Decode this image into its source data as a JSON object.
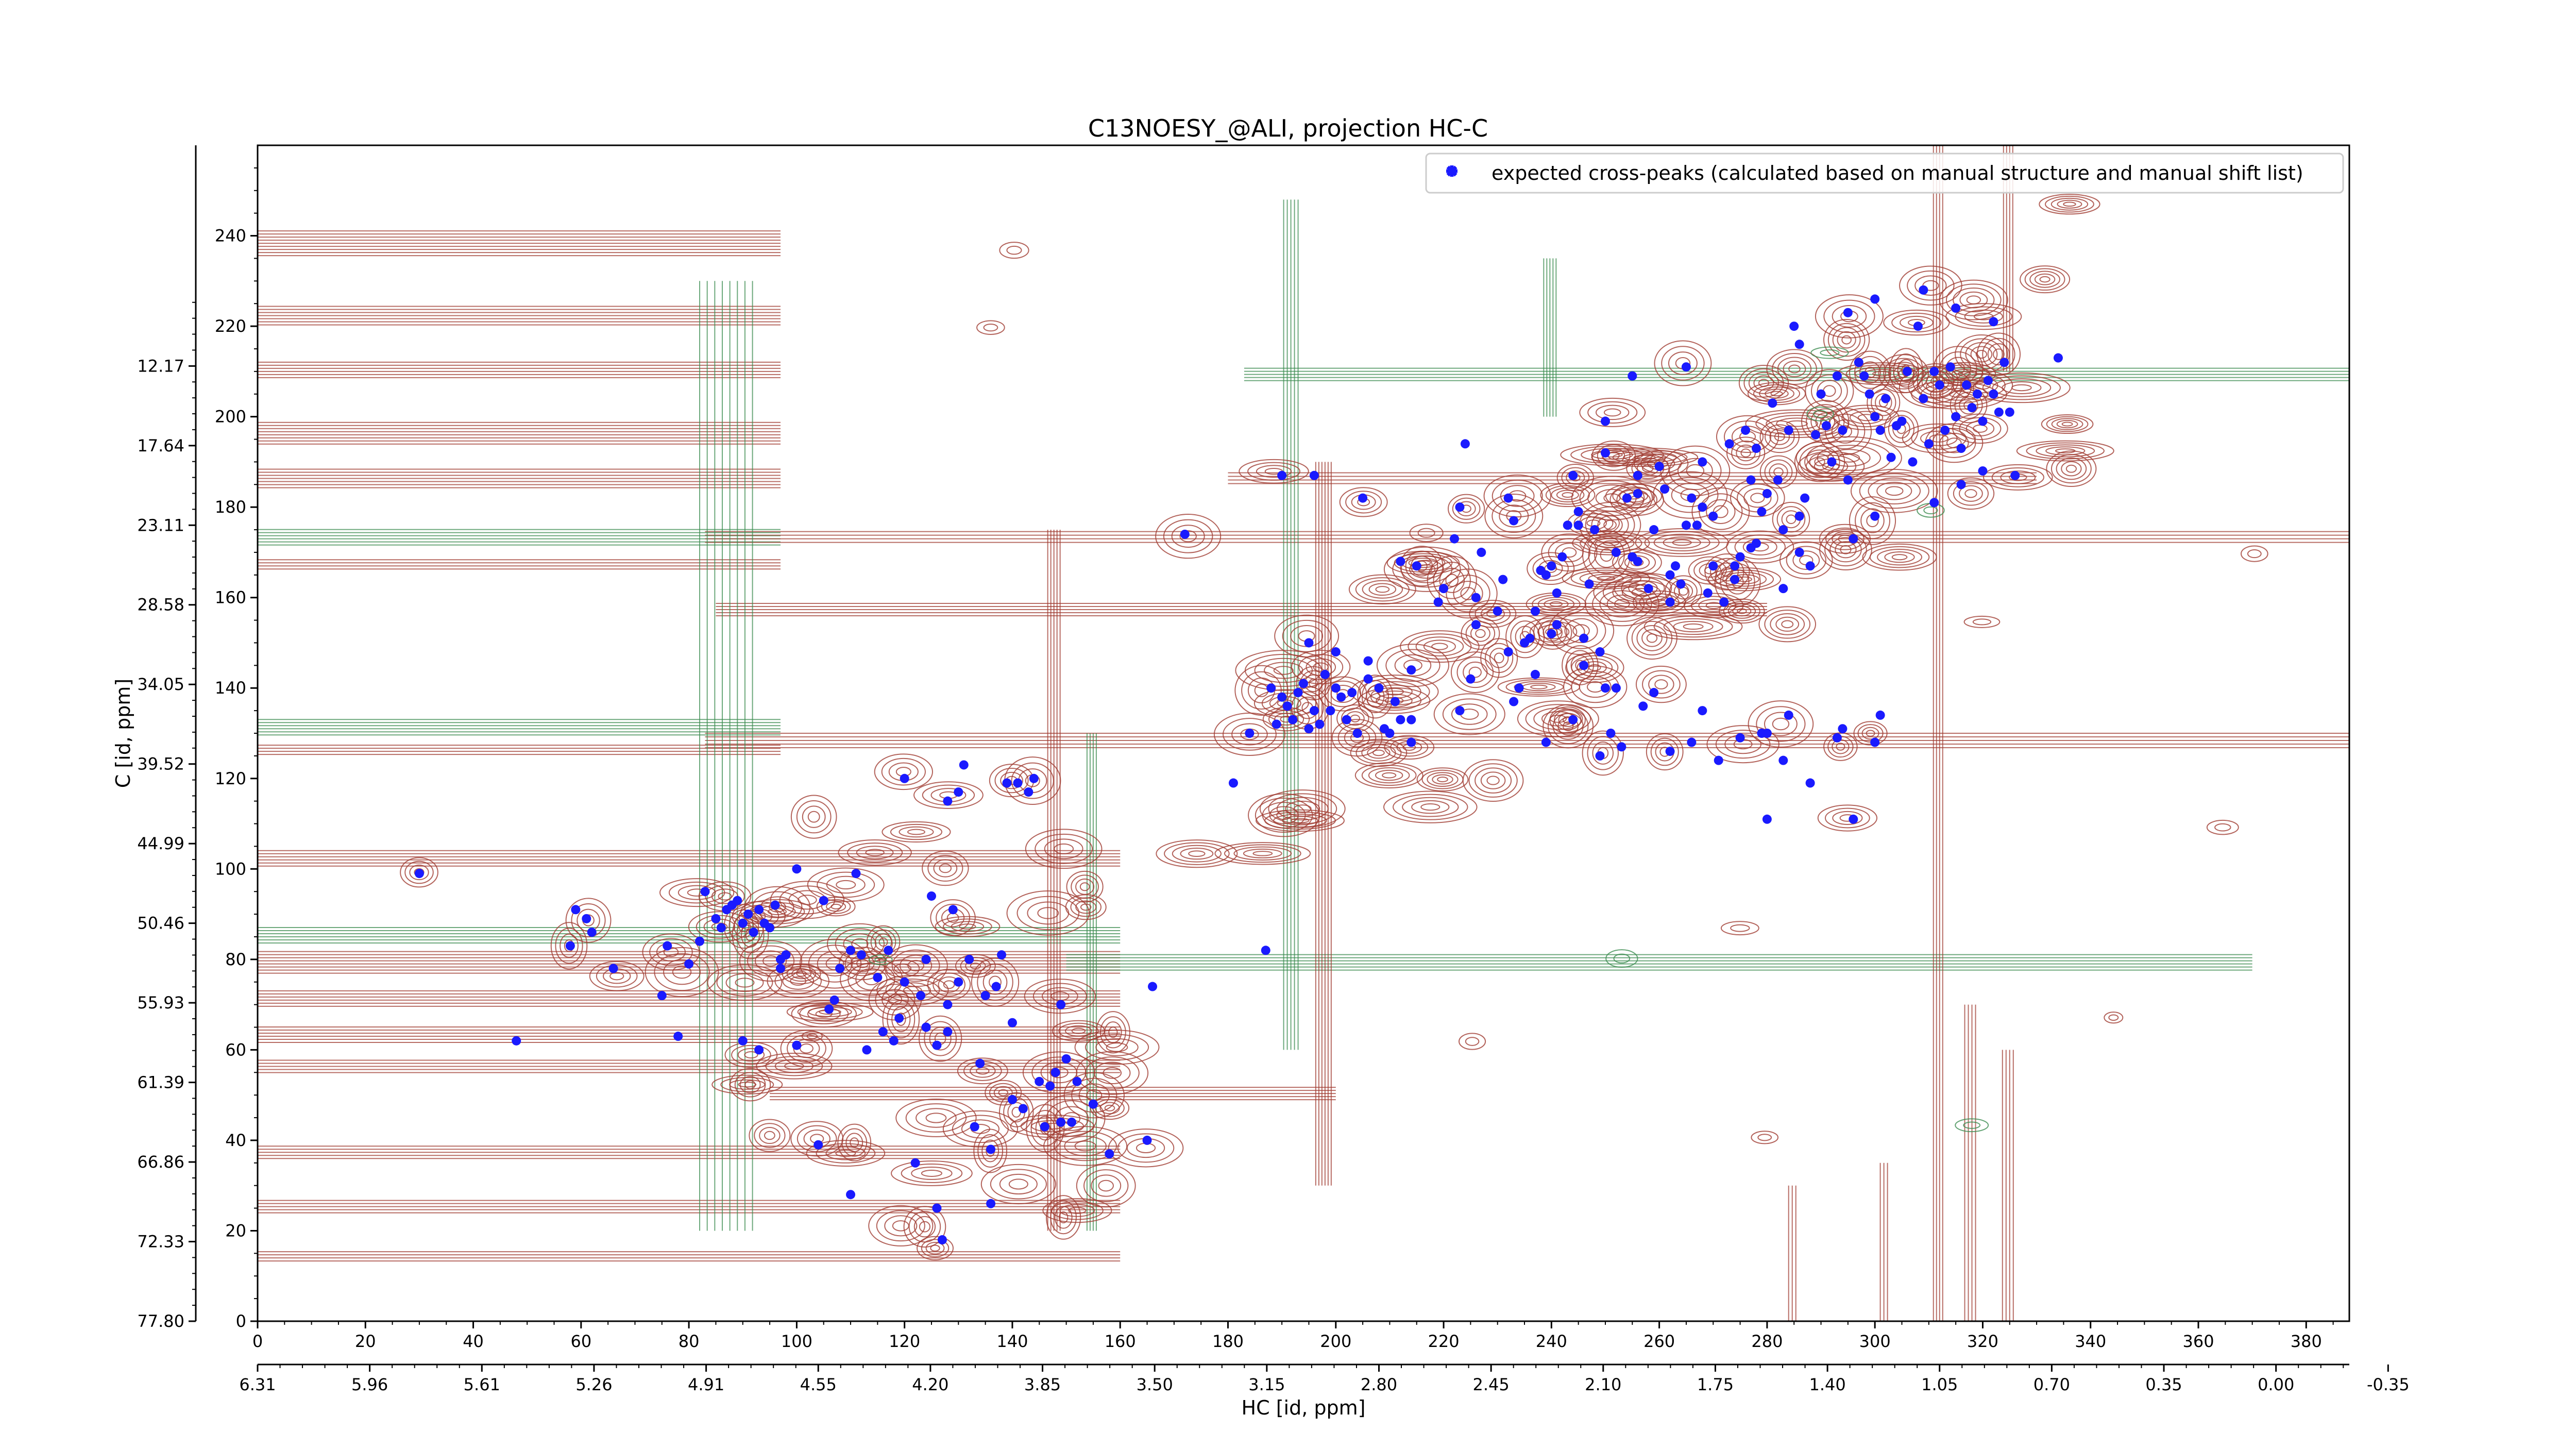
{
  "chart_data": {
    "type": "scatter",
    "title": "C13NOESY_@ALI, projection HC-C",
    "xlabel": "HC [id, ppm]",
    "ylabel": "C [id, ppm]",
    "x_index_ticks": [
      0,
      20,
      40,
      60,
      80,
      100,
      120,
      140,
      160,
      180,
      200,
      220,
      240,
      260,
      280,
      300,
      320,
      340,
      360,
      380
    ],
    "y_index_ticks": [
      0,
      20,
      40,
      60,
      80,
      100,
      120,
      140,
      160,
      180,
      200,
      220,
      240
    ],
    "x_ppm_ticks": [
      "6.31",
      "5.96",
      "5.61",
      "5.26",
      "4.91",
      "4.55",
      "4.20",
      "3.85",
      "3.50",
      "3.15",
      "2.80",
      "2.45",
      "2.10",
      "1.75",
      "1.40",
      "1.05",
      "0.70",
      "0.35",
      "0.00",
      "-0.35"
    ],
    "y_ppm_ticks": [
      "77.80",
      "72.33",
      "66.86",
      "61.39",
      "55.93",
      "50.46",
      "44.99",
      "39.52",
      "34.05",
      "28.58",
      "23.11",
      "17.64",
      "12.17"
    ],
    "xlim": [
      0,
      388
    ],
    "ylim": [
      0,
      260
    ],
    "colors": {
      "positive_contour": "#a03c32",
      "negative_contour": "#3c8c50",
      "marker": "#1a1aff"
    },
    "legend": {
      "position": "top-right",
      "label": "expected cross-peaks (calculated based on manual structure and manual shift list)"
    },
    "series": [
      {
        "name": "expected cross-peaks (calculated based on manual structure and manual shift list)",
        "points": [
          [
            30,
            99
          ],
          [
            48,
            62
          ],
          [
            58,
            83
          ],
          [
            59,
            91
          ],
          [
            61,
            89
          ],
          [
            62,
            86
          ],
          [
            66,
            78
          ],
          [
            75,
            72
          ],
          [
            76,
            83
          ],
          [
            78,
            63
          ],
          [
            80,
            79
          ],
          [
            82,
            84
          ],
          [
            83,
            95
          ],
          [
            85,
            89
          ],
          [
            86,
            87
          ],
          [
            87,
            91
          ],
          [
            88,
            92
          ],
          [
            89,
            93
          ],
          [
            90,
            88
          ],
          [
            91,
            90
          ],
          [
            92,
            86
          ],
          [
            93,
            91
          ],
          [
            94,
            88
          ],
          [
            95,
            87
          ],
          [
            96,
            92
          ],
          [
            90,
            62
          ],
          [
            93,
            60
          ],
          [
            97,
            78
          ],
          [
            97,
            80
          ],
          [
            98,
            81
          ],
          [
            100,
            61
          ],
          [
            100,
            100
          ],
          [
            104,
            39
          ],
          [
            105,
            93
          ],
          [
            106,
            69
          ],
          [
            107,
            71
          ],
          [
            108,
            78
          ],
          [
            110,
            28
          ],
          [
            110,
            82
          ],
          [
            111,
            99
          ],
          [
            112,
            81
          ],
          [
            113,
            60
          ],
          [
            115,
            76
          ],
          [
            116,
            64
          ],
          [
            117,
            82
          ],
          [
            118,
            62
          ],
          [
            119,
            67
          ],
          [
            120,
            75
          ],
          [
            120,
            120
          ],
          [
            122,
            35
          ],
          [
            123,
            72
          ],
          [
            124,
            65
          ],
          [
            124,
            80
          ],
          [
            125,
            94
          ],
          [
            126,
            61
          ],
          [
            126,
            25
          ],
          [
            127,
            18
          ],
          [
            128,
            64
          ],
          [
            128,
            115
          ],
          [
            128,
            70
          ],
          [
            129,
            91
          ],
          [
            130,
            117
          ],
          [
            130,
            75
          ],
          [
            131,
            123
          ],
          [
            132,
            80
          ],
          [
            133,
            43
          ],
          [
            134,
            57
          ],
          [
            135,
            72
          ],
          [
            136,
            38
          ],
          [
            136,
            26
          ],
          [
            137,
            74
          ],
          [
            138,
            81
          ],
          [
            139,
            119
          ],
          [
            140,
            66
          ],
          [
            140,
            49
          ],
          [
            141,
            119
          ],
          [
            142,
            47
          ],
          [
            143,
            117
          ],
          [
            144,
            120
          ],
          [
            145,
            53
          ],
          [
            146,
            43
          ],
          [
            147,
            52
          ],
          [
            148,
            55
          ],
          [
            149,
            44
          ],
          [
            149,
            70
          ],
          [
            150,
            58
          ],
          [
            151,
            44
          ],
          [
            152,
            53
          ],
          [
            155,
            48
          ],
          [
            158,
            37
          ],
          [
            165,
            40
          ],
          [
            166,
            74
          ],
          [
            172,
            174
          ],
          [
            181,
            119
          ],
          [
            184,
            130
          ],
          [
            187,
            82
          ],
          [
            188,
            140
          ],
          [
            189,
            132
          ],
          [
            190,
            138
          ],
          [
            191,
            136
          ],
          [
            192,
            133
          ],
          [
            193,
            139
          ],
          [
            194,
            141
          ],
          [
            195,
            131
          ],
          [
            196,
            135
          ],
          [
            197,
            132
          ],
          [
            198,
            143
          ],
          [
            199,
            135
          ],
          [
            200,
            140
          ],
          [
            201,
            138
          ],
          [
            202,
            133
          ],
          [
            203,
            139
          ],
          [
            204,
            130
          ],
          [
            206,
            142
          ],
          [
            208,
            140
          ],
          [
            210,
            130
          ],
          [
            211,
            137
          ],
          [
            212,
            133
          ],
          [
            214,
            128
          ],
          [
            214,
            133
          ],
          [
            190,
            187
          ],
          [
            196,
            187
          ],
          [
            205,
            182
          ],
          [
            212,
            168
          ],
          [
            215,
            167
          ],
          [
            219,
            159
          ],
          [
            220,
            162
          ],
          [
            222,
            173
          ],
          [
            223,
            180
          ],
          [
            224,
            194
          ],
          [
            226,
            160
          ],
          [
            227,
            170
          ],
          [
            230,
            157
          ],
          [
            231,
            164
          ],
          [
            232,
            182
          ],
          [
            234,
            140
          ],
          [
            236,
            151
          ],
          [
            237,
            157
          ],
          [
            238,
            166
          ],
          [
            239,
            165
          ],
          [
            240,
            152
          ],
          [
            241,
            161
          ],
          [
            242,
            169
          ],
          [
            243,
            176
          ],
          [
            244,
            187
          ],
          [
            245,
            179
          ],
          [
            246,
            151
          ],
          [
            247,
            163
          ],
          [
            248,
            175
          ],
          [
            249,
            148
          ],
          [
            250,
            192
          ],
          [
            251,
            130
          ],
          [
            252,
            170
          ],
          [
            253,
            127
          ],
          [
            254,
            182
          ],
          [
            255,
            169
          ],
          [
            256,
            183
          ],
          [
            257,
            136
          ],
          [
            258,
            162
          ],
          [
            259,
            175
          ],
          [
            260,
            189
          ],
          [
            261,
            184
          ],
          [
            262,
            159
          ],
          [
            263,
            167
          ],
          [
            264,
            163
          ],
          [
            265,
            176
          ],
          [
            266,
            182
          ],
          [
            267,
            176
          ],
          [
            268,
            190
          ],
          [
            269,
            161
          ],
          [
            270,
            178
          ],
          [
            271,
            124
          ],
          [
            272,
            159
          ],
          [
            273,
            194
          ],
          [
            274,
            164
          ],
          [
            275,
            169
          ],
          [
            276,
            197
          ],
          [
            277,
            186
          ],
          [
            278,
            193
          ],
          [
            279,
            179
          ],
          [
            280,
            183
          ],
          [
            281,
            203
          ],
          [
            282,
            186
          ],
          [
            283,
            162
          ],
          [
            284,
            197
          ],
          [
            285,
            220
          ],
          [
            286,
            178
          ],
          [
            287,
            182
          ],
          [
            288,
            167
          ],
          [
            289,
            196
          ],
          [
            290,
            205
          ],
          [
            291,
            198
          ],
          [
            292,
            190
          ],
          [
            293,
            209
          ],
          [
            294,
            197
          ],
          [
            295,
            186
          ],
          [
            296,
            173
          ],
          [
            297,
            212
          ],
          [
            298,
            209
          ],
          [
            299,
            205
          ],
          [
            300,
            200
          ],
          [
            301,
            197
          ],
          [
            302,
            204
          ],
          [
            303,
            191
          ],
          [
            304,
            198
          ],
          [
            305,
            199
          ],
          [
            306,
            210
          ],
          [
            307,
            190
          ],
          [
            308,
            220
          ],
          [
            309,
            204
          ],
          [
            310,
            194
          ],
          [
            311,
            210
          ],
          [
            312,
            207
          ],
          [
            313,
            197
          ],
          [
            314,
            211
          ],
          [
            315,
            200
          ],
          [
            316,
            193
          ],
          [
            317,
            207
          ],
          [
            318,
            202
          ],
          [
            319,
            205
          ],
          [
            320,
            199
          ],
          [
            321,
            208
          ],
          [
            322,
            205
          ],
          [
            323,
            201
          ],
          [
            324,
            212
          ],
          [
            325,
            201
          ],
          [
            326,
            187
          ],
          [
            279,
            130
          ],
          [
            284,
            134
          ],
          [
            288,
            119
          ],
          [
            293,
            129
          ],
          [
            294,
            131
          ],
          [
            300,
            128
          ],
          [
            301,
            134
          ],
          [
            296,
            111
          ],
          [
            280,
            111
          ],
          [
            262,
            126
          ],
          [
            266,
            128
          ],
          [
            250,
            140
          ],
          [
            233,
            137
          ],
          [
            223,
            135
          ],
          [
            209,
            131
          ],
          [
            226,
            154
          ],
          [
            240,
            167
          ],
          [
            233,
            177
          ],
          [
            245,
            176
          ],
          [
            256,
            187
          ],
          [
            268,
            180
          ],
          [
            278,
            172
          ],
          [
            286,
            170
          ],
          [
            300,
            178
          ],
          [
            311,
            181
          ],
          [
            316,
            185
          ],
          [
            320,
            188
          ],
          [
            250,
            199
          ],
          [
            255,
            209
          ],
          [
            265,
            211
          ],
          [
            286,
            216
          ],
          [
            295,
            223
          ],
          [
            300,
            226
          ],
          [
            309,
            228
          ],
          [
            315,
            224
          ],
          [
            322,
            221
          ],
          [
            334,
            213
          ],
          [
            256,
            168
          ],
          [
            262,
            165
          ],
          [
            270,
            167
          ],
          [
            283,
            175
          ],
          [
            274,
            167
          ],
          [
            277,
            171
          ],
          [
            241,
            154
          ],
          [
            235,
            150
          ],
          [
            232,
            148
          ],
          [
            237,
            143
          ],
          [
            246,
            145
          ],
          [
            252,
            140
          ],
          [
            259,
            139
          ],
          [
            268,
            135
          ],
          [
            275,
            129
          ],
          [
            283,
            124
          ],
          [
            244,
            133
          ],
          [
            239,
            128
          ],
          [
            249,
            125
          ],
          [
            280,
            130
          ],
          [
            225,
            142
          ],
          [
            206,
            146
          ],
          [
            214,
            144
          ],
          [
            200,
            148
          ],
          [
            195,
            150
          ]
        ]
      }
    ]
  }
}
